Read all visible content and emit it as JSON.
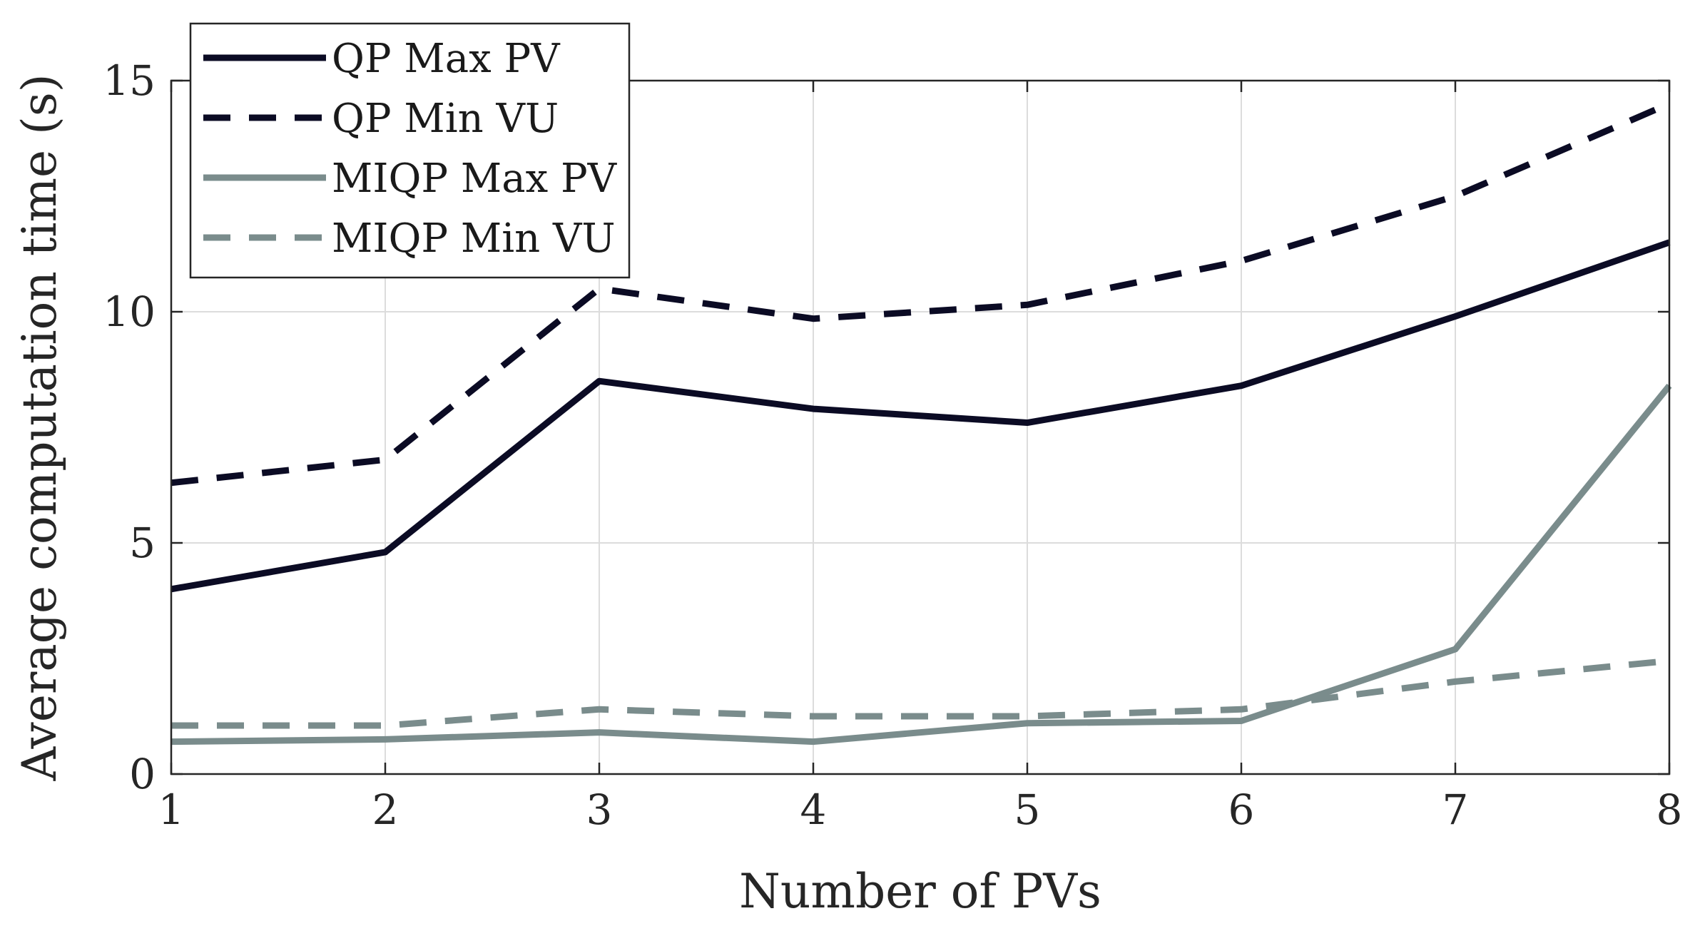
{
  "chart_data": {
    "type": "line",
    "title": "",
    "xlabel": "Number of PVs",
    "ylabel": "Average computation time (s)",
    "x": [
      1,
      2,
      3,
      4,
      5,
      6,
      7,
      8
    ],
    "xlim": [
      1,
      8
    ],
    "ylim": [
      0,
      15
    ],
    "xticks": [
      1,
      2,
      3,
      4,
      5,
      6,
      7,
      8
    ],
    "yticks": [
      0,
      5,
      10,
      15
    ],
    "grid": true,
    "legend_position": "top-left",
    "series": [
      {
        "name": "QP Max PV",
        "values": [
          4.0,
          4.8,
          8.5,
          7.9,
          7.6,
          8.4,
          9.9,
          11.5
        ],
        "color": "#0b0b24",
        "style": "solid"
      },
      {
        "name": "QP Min VU",
        "values": [
          6.3,
          6.8,
          10.5,
          9.85,
          10.15,
          11.1,
          12.5,
          14.5
        ],
        "color": "#0b0b24",
        "style": "dashed"
      },
      {
        "name": "MIQP Max PV",
        "values": [
          0.7,
          0.75,
          0.9,
          0.7,
          1.1,
          1.15,
          2.7,
          8.4
        ],
        "color": "#7a8c8c",
        "style": "solid"
      },
      {
        "name": "MIQP Min VU",
        "values": [
          1.05,
          1.05,
          1.4,
          1.25,
          1.25,
          1.4,
          2.0,
          2.45
        ],
        "color": "#7a8c8c",
        "style": "dashed"
      }
    ]
  }
}
